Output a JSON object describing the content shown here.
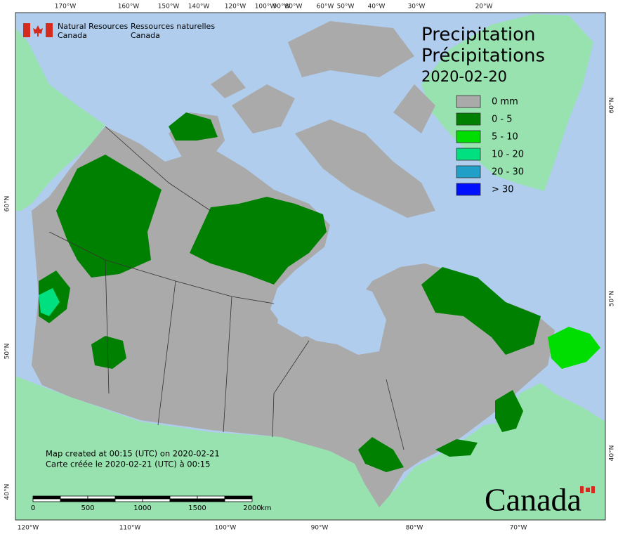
{
  "header": {
    "agency_en": [
      "Natural Resources",
      "Canada"
    ],
    "agency_fr": [
      "Ressources naturelles",
      "Canada"
    ]
  },
  "title": {
    "en": "Precipitation",
    "fr": "Précipitations",
    "date": "2020-02-20"
  },
  "legend": [
    {
      "label": "0 mm",
      "color": "#aaaaaa"
    },
    {
      "label": "0 - 5",
      "color": "#008000"
    },
    {
      "label": "5 - 10",
      "color": "#00dd00"
    },
    {
      "label": "10 - 20",
      "color": "#00e080"
    },
    {
      "label": "20 - 30",
      "color": "#20a0c8"
    },
    {
      "label": "> 30",
      "color": "#0010ff"
    }
  ],
  "graticule": {
    "top": [
      "170°W",
      "160°W",
      "150°W",
      "140°W",
      "120°W",
      "100°W",
      "90°W",
      "80°W",
      "60°W",
      "50°W",
      "40°W",
      "30°W",
      "20°W"
    ],
    "bottom": [
      "120°W",
      "110°W",
      "100°W",
      "90°W",
      "80°W",
      "70°W"
    ],
    "left": [
      "60°N",
      "50°N",
      "40°N"
    ],
    "right": [
      "60°N",
      "50°N",
      "40°N"
    ]
  },
  "footer": {
    "created_en": "Map created at 00:15 (UTC) on 2020-02-21",
    "created_fr": "Carte créée le 2020-02-21 (UTC) à 00:15"
  },
  "scale_bar": {
    "ticks": [
      0,
      500,
      1000,
      1500,
      2000
    ],
    "unit": "km"
  },
  "wordmark": "Canada"
}
